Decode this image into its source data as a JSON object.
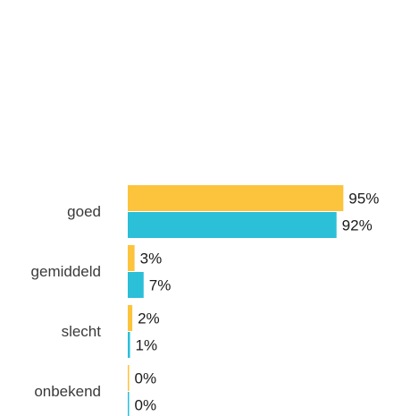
{
  "chart_data": {
    "type": "bar",
    "orientation": "horizontal",
    "categories": [
      "goed",
      "gemiddeld",
      "slecht",
      "onbekend"
    ],
    "series": [
      {
        "values": [
          95,
          3,
          2,
          0
        ],
        "color": "#fcc33c"
      },
      {
        "values": [
          92,
          7,
          1,
          0
        ],
        "color": "#2bbfd8"
      }
    ],
    "value_suffix": "%",
    "xlim": [
      0,
      100
    ],
    "grid": false,
    "legend": "none",
    "title": "",
    "xlabel": "",
    "ylabel": ""
  }
}
